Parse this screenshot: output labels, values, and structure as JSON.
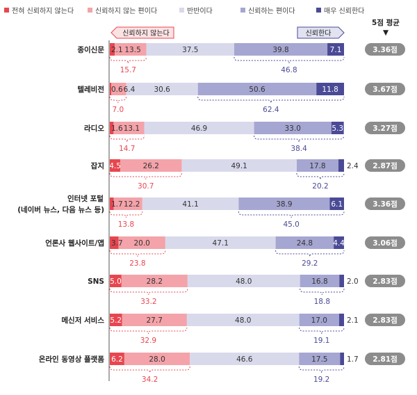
{
  "chart_data": {
    "type": "bar",
    "orientation": "horizontal",
    "stacked": true,
    "xlim": [
      0,
      100
    ],
    "series": [
      {
        "name": "전혀 신뢰하지 않는다",
        "color": "#e8464f"
      },
      {
        "name": "신뢰하지 않는 편이다",
        "color": "#f3a3a9"
      },
      {
        "name": "반반이다",
        "color": "#d9d9ec"
      },
      {
        "name": "신뢰하는 편이다",
        "color": "#a6a6d2"
      },
      {
        "name": "매우 신뢰한다",
        "color": "#4a4a96"
      }
    ],
    "annotations": {
      "left_arrow": "신뢰하지 않는다",
      "right_arrow": "신뢰한다",
      "avg_header": "5점 평균",
      "avg_marker": "▼"
    },
    "rows": [
      {
        "label": [
          "종이신문"
        ],
        "values": [
          2.1,
          13.5,
          37.5,
          39.8,
          7.1
        ],
        "labels": [
          "2.1",
          "13.5",
          "37.5",
          "39.8",
          "7.1"
        ],
        "distrust": "15.7",
        "trust": "46.8",
        "avg": "3.36점"
      },
      {
        "label": [
          "텔레비전"
        ],
        "values": [
          0.6,
          6.4,
          30.6,
          50.6,
          11.8
        ],
        "labels": [
          "0.6",
          "6.4",
          "30.6",
          "50.6",
          "11.8"
        ],
        "distrust": "7.0",
        "trust": "62.4",
        "avg": "3.67점"
      },
      {
        "label": [
          "라디오"
        ],
        "values": [
          1.6,
          13.1,
          46.9,
          33.0,
          5.3
        ],
        "labels": [
          "1.6",
          "13.1",
          "46.9",
          "33.0",
          "5.3"
        ],
        "distrust": "14.7",
        "trust": "38.4",
        "avg": "3.27점"
      },
      {
        "label": [
          "잡지"
        ],
        "values": [
          4.5,
          26.2,
          49.1,
          17.8,
          2.4
        ],
        "labels": [
          "4.5",
          "26.2",
          "49.1",
          "17.8",
          "2.4"
        ],
        "distrust": "30.7",
        "trust": "20.2",
        "avg": "2.87점"
      },
      {
        "label": [
          "인터넷 포털",
          "(네이버 뉴스, 다음 뉴스 등)"
        ],
        "values": [
          1.7,
          12.2,
          41.1,
          38.9,
          6.1
        ],
        "labels": [
          "1.7",
          "12.2",
          "41.1",
          "38.9",
          "6.1"
        ],
        "distrust": "13.8",
        "trust": "45.0",
        "avg": "3.36점"
      },
      {
        "label": [
          "언론사 웹사이트/앱"
        ],
        "values": [
          3.7,
          20.0,
          47.1,
          24.8,
          4.4
        ],
        "labels": [
          "3.7",
          "20.0",
          "47.1",
          "24.8",
          "4.4"
        ],
        "distrust": "23.8",
        "trust": "29.2",
        "avg": "3.06점"
      },
      {
        "label": [
          "SNS"
        ],
        "values": [
          5.0,
          28.2,
          48.0,
          16.8,
          2.0
        ],
        "labels": [
          "5.0",
          "28.2",
          "48.0",
          "16.8",
          "2.0"
        ],
        "distrust": "33.2",
        "trust": "18.8",
        "avg": "2.83점"
      },
      {
        "label": [
          "메신저 서비스"
        ],
        "values": [
          5.2,
          27.7,
          48.0,
          17.0,
          2.1
        ],
        "labels": [
          "5.2",
          "27.7",
          "48.0",
          "17.0",
          "2.1"
        ],
        "distrust": "32.9",
        "trust": "19.1",
        "avg": "2.83점"
      },
      {
        "label": [
          "온라인 동영상 플랫폼"
        ],
        "values": [
          6.2,
          28.0,
          46.6,
          17.5,
          1.7
        ],
        "labels": [
          "6.2",
          "28.0",
          "46.6",
          "17.5",
          "1.7"
        ],
        "distrust": "34.2",
        "trust": "19.2",
        "avg": "2.81점"
      }
    ],
    "colors": {
      "distrust_sum": "#e8464f",
      "trust_sum": "#4a4a96",
      "avg_badge": "#8c8c8c",
      "axis": "#555555"
    }
  }
}
